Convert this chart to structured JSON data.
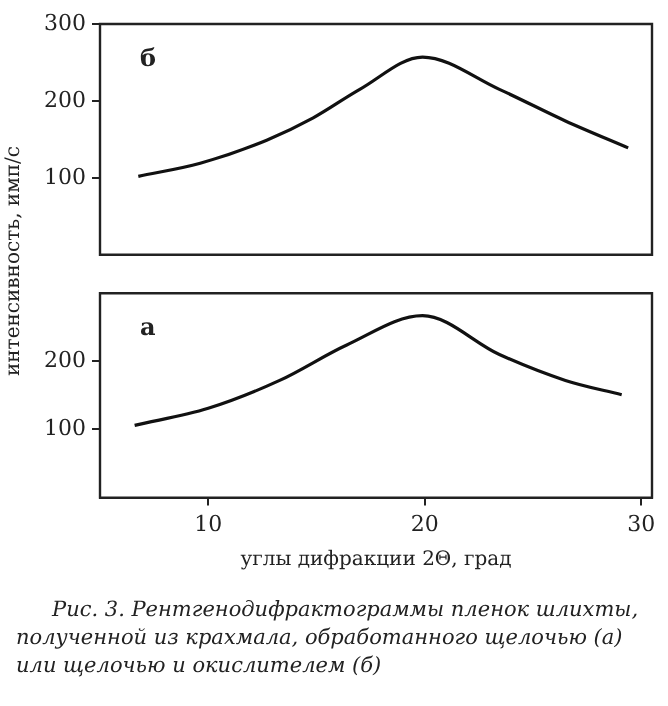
{
  "chart_data": [
    {
      "type": "line",
      "ylabel": "интенсивность, имп/с",
      "annotations": [
        "б"
      ],
      "xlim": [
        5,
        30.5
      ],
      "xticks": [
        10,
        20,
        30
      ],
      "ylim": [
        0,
        300
      ],
      "yticks": [
        100,
        200,
        300
      ],
      "tick_labels": "y",
      "grid": false,
      "legend": false,
      "marker": "none",
      "line_style": "solid",
      "series": [
        {
          "color": "#111111",
          "x": [
            6.77,
            9.63,
            12.7,
            14.85,
            17.0,
            19.9,
            23.45,
            26.5,
            29.4
          ],
          "values": [
            102,
            119,
            149,
            178,
            215,
            257,
            215,
            174,
            139
          ]
        }
      ]
    },
    {
      "type": "line",
      "xlabel": "углы дифракции 2Θ, град",
      "annotations": [
        "а",
        "Рис. 3. Рентгенодифрактограммы пленок шлихты, полученной из крахмала, обработанного щелочью (а) или щелочью и окислителем (б)"
      ],
      "xlim": [
        5,
        30.5
      ],
      "xticks": [
        10,
        20,
        30
      ],
      "ylim": [
        0,
        300
      ],
      "yticks": [
        100,
        200
      ],
      "grid": false,
      "legend": false,
      "marker": "none",
      "line_style": "solid",
      "series": [
        {
          "color": "#111111",
          "x": [
            6.6,
            10.0,
            13.3,
            16.4,
            19.9,
            23.45,
            26.5,
            29.1
          ],
          "values": [
            106,
            131,
            172,
            224,
            267,
            210,
            172,
            151
          ]
        }
      ]
    }
  ]
}
